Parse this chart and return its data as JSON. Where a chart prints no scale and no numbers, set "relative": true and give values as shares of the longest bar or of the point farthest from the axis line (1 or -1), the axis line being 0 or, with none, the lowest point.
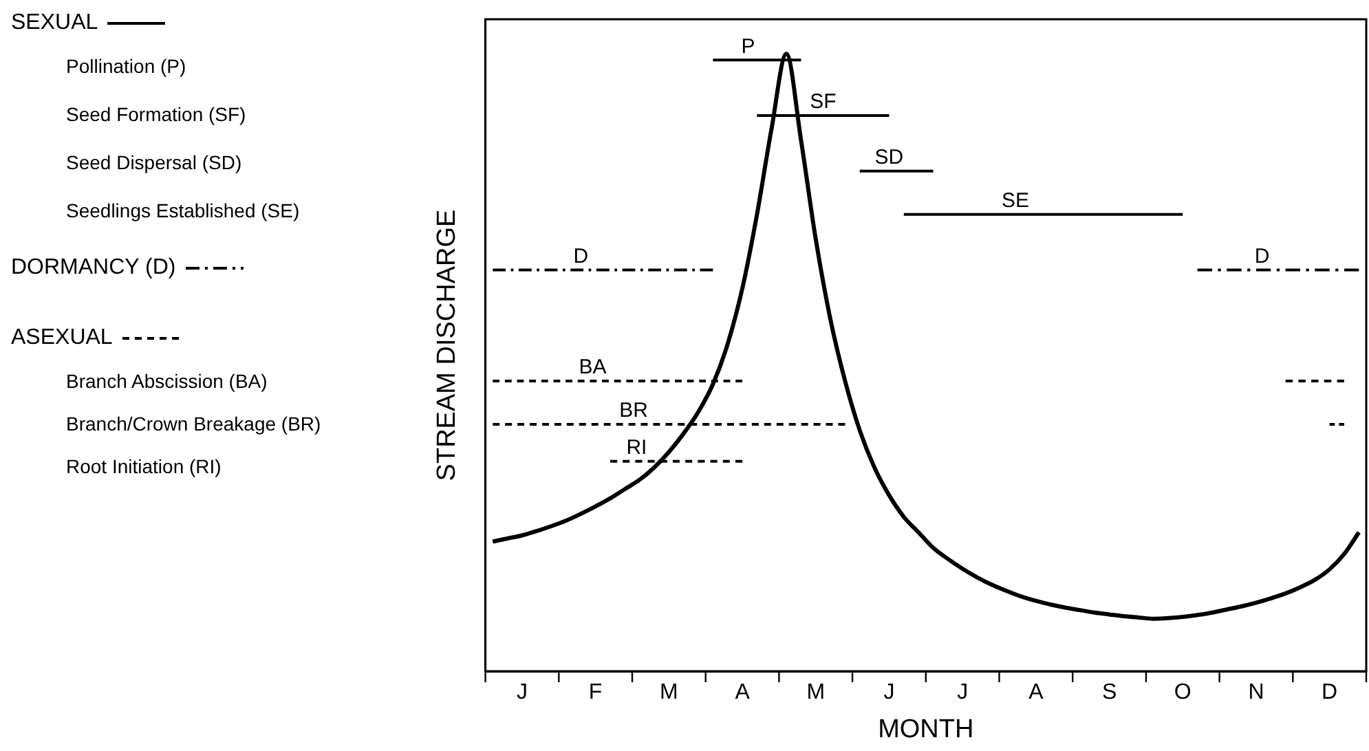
{
  "chart_data": {
    "type": "line",
    "relative": true,
    "xlabel": "MONTH",
    "ylabel": "STREAM DISCHARGE",
    "legend": false,
    "marker": "none",
    "categories": [
      null,
      null,
      "J",
      null,
      null,
      null,
      null,
      "F",
      null,
      null,
      null,
      null,
      "M",
      null,
      null,
      null,
      null,
      "A",
      null,
      null,
      null,
      null,
      "M",
      null,
      null,
      null,
      null,
      "J",
      null,
      null,
      null,
      null,
      "J",
      null,
      null,
      null,
      null,
      "A",
      null,
      null,
      null,
      null,
      "S",
      null,
      null,
      null,
      null,
      "O",
      null,
      null,
      null,
      null,
      "N",
      null,
      null,
      null,
      null,
      "D",
      null,
      null
    ],
    "annotations": [
      "SEXUAL",
      "Pollination (P)",
      "Seed Formation (SF)",
      "Seed Dispersal (SD)",
      "Seedlings Established (SE)",
      "DORMANCY (D)",
      "ASEXUAL",
      "Branch Abscission (BA)",
      "Branch/Crown Breakage (BR)",
      "Root Initiation (RI)"
    ],
    "series": [
      {
        "color": "#000000",
        "line_style": "solid",
        "values": [
          0.21,
          0.215,
          0.22,
          0.227,
          0.235,
          0.244,
          0.255,
          0.267,
          0.28,
          0.295,
          0.31,
          0.33,
          0.355,
          0.385,
          0.42,
          0.465,
          0.53,
          0.62,
          0.74,
          0.88,
          1,
          0.86,
          0.7,
          0.57,
          0.47,
          0.39,
          0.33,
          0.285,
          0.25,
          0.225,
          0.2,
          0.182,
          0.166,
          0.152,
          0.14,
          0.13,
          0.121,
          0.114,
          0.108,
          0.103,
          0.099,
          0.095,
          0.092,
          0.089,
          0.087,
          0.085,
          0.086,
          0.088,
          0.091,
          0.095,
          0.1,
          0.105,
          0.111,
          0.118,
          0.126,
          0.136,
          0.148,
          0.165,
          0.19,
          0.225
        ]
      },
      {
        "name": "P",
        "color": "#000000",
        "line_style": "solid",
        "values": [
          null,
          null,
          null,
          null,
          null,
          null,
          null,
          null,
          null,
          null,
          null,
          null,
          null,
          null,
          null,
          0.99,
          0.99,
          0.99,
          0.99,
          0.99,
          0.99,
          0.99,
          null,
          null,
          null,
          null,
          null,
          null,
          null,
          null,
          null,
          null,
          null,
          null,
          null,
          null,
          null,
          null,
          null,
          null,
          null,
          null,
          null,
          null,
          null,
          null,
          null,
          null,
          null,
          null,
          null,
          null,
          null,
          null,
          null,
          null,
          null,
          null,
          null,
          null
        ]
      },
      {
        "name": "SF",
        "color": "#000000",
        "line_style": "solid",
        "values": [
          null,
          null,
          null,
          null,
          null,
          null,
          null,
          null,
          null,
          null,
          null,
          null,
          null,
          null,
          null,
          null,
          null,
          null,
          0.9,
          0.9,
          0.9,
          0.9,
          0.9,
          0.9,
          0.9,
          0.9,
          0.9,
          0.9,
          null,
          null,
          null,
          null,
          null,
          null,
          null,
          null,
          null,
          null,
          null,
          null,
          null,
          null,
          null,
          null,
          null,
          null,
          null,
          null,
          null,
          null,
          null,
          null,
          null,
          null,
          null,
          null,
          null,
          null,
          null,
          null
        ]
      },
      {
        "name": "SD",
        "color": "#000000",
        "line_style": "solid",
        "values": [
          null,
          null,
          null,
          null,
          null,
          null,
          null,
          null,
          null,
          null,
          null,
          null,
          null,
          null,
          null,
          null,
          null,
          null,
          null,
          null,
          null,
          null,
          null,
          null,
          null,
          0.81,
          0.81,
          0.81,
          0.81,
          0.81,
          0.81,
          null,
          null,
          null,
          null,
          null,
          null,
          null,
          null,
          null,
          null,
          null,
          null,
          null,
          null,
          null,
          null,
          null,
          null,
          null,
          null,
          null,
          null,
          null,
          null,
          null,
          null,
          null,
          null,
          null
        ]
      },
      {
        "name": "SE",
        "color": "#000000",
        "line_style": "solid",
        "values": [
          null,
          null,
          null,
          null,
          null,
          null,
          null,
          null,
          null,
          null,
          null,
          null,
          null,
          null,
          null,
          null,
          null,
          null,
          null,
          null,
          null,
          null,
          null,
          null,
          null,
          null,
          null,
          null,
          0.74,
          0.74,
          0.74,
          0.74,
          0.74,
          0.74,
          0.74,
          0.74,
          0.74,
          0.74,
          0.74,
          0.74,
          0.74,
          0.74,
          0.74,
          0.74,
          0.74,
          0.74,
          0.74,
          0.74,
          null,
          null,
          null,
          null,
          null,
          null,
          null,
          null,
          null,
          null,
          null,
          null
        ]
      },
      {
        "name": "D",
        "color": "#000000",
        "line_style": "dotted",
        "values": [
          0.65,
          0.65,
          0.65,
          0.65,
          0.65,
          0.65,
          0.65,
          0.65,
          0.65,
          0.65,
          0.65,
          0.65,
          0.65,
          0.65,
          0.65,
          0.65,
          null,
          null,
          null,
          null,
          null,
          null,
          null,
          null,
          null,
          null,
          null,
          null,
          null,
          null,
          null,
          null,
          null,
          null,
          null,
          null,
          null,
          null,
          null,
          null,
          null,
          null,
          null,
          null,
          null,
          null,
          null,
          null,
          null,
          null,
          null,
          null,
          null,
          null,
          null,
          null,
          null,
          null,
          null,
          null
        ]
      },
      {
        "name": "D",
        "color": "#000000",
        "line_style": "dotted",
        "values": [
          null,
          null,
          null,
          null,
          null,
          null,
          null,
          null,
          null,
          null,
          null,
          null,
          null,
          null,
          null,
          null,
          null,
          null,
          null,
          null,
          null,
          null,
          null,
          null,
          null,
          null,
          null,
          null,
          null,
          null,
          null,
          null,
          null,
          null,
          null,
          null,
          null,
          null,
          null,
          null,
          null,
          null,
          null,
          null,
          null,
          null,
          null,
          null,
          0.65,
          0.65,
          0.65,
          0.65,
          0.65,
          0.65,
          0.65,
          0.65,
          0.65,
          0.65,
          0.65,
          0.65
        ]
      },
      {
        "name": "BA",
        "color": "#000000",
        "line_style": "dashed",
        "values": [
          0.47,
          0.47,
          0.47,
          0.47,
          0.47,
          0.47,
          0.47,
          0.47,
          0.47,
          0.47,
          0.47,
          0.47,
          0.47,
          0.47,
          0.47,
          0.47,
          0.47,
          0.47,
          null,
          null,
          null,
          null,
          null,
          null,
          null,
          null,
          null,
          null,
          null,
          null,
          null,
          null,
          null,
          null,
          null,
          null,
          null,
          null,
          null,
          null,
          null,
          null,
          null,
          null,
          null,
          null,
          null,
          null,
          null,
          null,
          null,
          null,
          null,
          null,
          null,
          null,
          null,
          null,
          null,
          null
        ]
      },
      {
        "color": "#000000",
        "line_style": "dashed",
        "values": [
          null,
          null,
          null,
          null,
          null,
          null,
          null,
          null,
          null,
          null,
          null,
          null,
          null,
          null,
          null,
          null,
          null,
          null,
          null,
          null,
          null,
          null,
          null,
          null,
          null,
          null,
          null,
          null,
          null,
          null,
          null,
          null,
          null,
          null,
          null,
          null,
          null,
          null,
          null,
          null,
          null,
          null,
          null,
          null,
          null,
          null,
          null,
          null,
          null,
          null,
          null,
          null,
          null,
          null,
          0.47,
          0.47,
          0.47,
          0.47,
          0.47,
          null
        ]
      },
      {
        "name": "BR",
        "color": "#000000",
        "line_style": "dashed",
        "values": [
          0.4,
          0.4,
          0.4,
          0.4,
          0.4,
          0.4,
          0.4,
          0.4,
          0.4,
          0.4,
          0.4,
          0.4,
          0.4,
          0.4,
          0.4,
          0.4,
          0.4,
          0.4,
          0.4,
          0.4,
          0.4,
          0.4,
          0.4,
          0.4,
          0.4,
          null,
          null,
          null,
          null,
          null,
          null,
          null,
          null,
          null,
          null,
          null,
          null,
          null,
          null,
          null,
          null,
          null,
          null,
          null,
          null,
          null,
          null,
          null,
          null,
          null,
          null,
          null,
          null,
          null,
          null,
          null,
          null,
          null,
          null,
          null
        ]
      },
      {
        "color": "#000000",
        "line_style": "dashed",
        "values": [
          null,
          null,
          null,
          null,
          null,
          null,
          null,
          null,
          null,
          null,
          null,
          null,
          null,
          null,
          null,
          null,
          null,
          null,
          null,
          null,
          null,
          null,
          null,
          null,
          null,
          null,
          null,
          null,
          null,
          null,
          null,
          null,
          null,
          null,
          null,
          null,
          null,
          null,
          null,
          null,
          null,
          null,
          null,
          null,
          null,
          null,
          null,
          null,
          null,
          null,
          null,
          null,
          null,
          null,
          null,
          null,
          null,
          0.4,
          0.4,
          null
        ]
      },
      {
        "name": "RI",
        "color": "#000000",
        "line_style": "dashed",
        "values": [
          null,
          null,
          null,
          null,
          null,
          null,
          null,
          null,
          0.34,
          0.34,
          0.34,
          0.34,
          0.34,
          0.34,
          0.34,
          0.34,
          0.34,
          0.34,
          null,
          null,
          null,
          null,
          null,
          null,
          null,
          null,
          null,
          null,
          null,
          null,
          null,
          null,
          null,
          null,
          null,
          null,
          null,
          null,
          null,
          null,
          null,
          null,
          null,
          null,
          null,
          null,
          null,
          null,
          null,
          null,
          null,
          null,
          null,
          null,
          null,
          null,
          null,
          null,
          null,
          null
        ]
      }
    ]
  }
}
